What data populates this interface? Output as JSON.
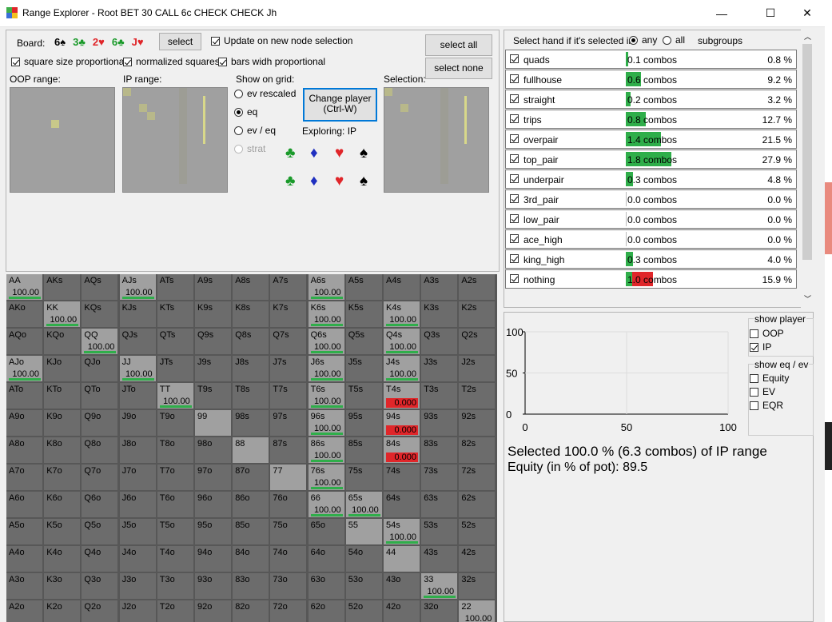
{
  "window": {
    "title": "Range Explorer  - Root BET 30 CALL 6c CHECK CHECK Jh",
    "minimize": "—",
    "maximize": "☐",
    "close": "✕",
    "icon_colors": [
      "#3fae4a",
      "#e0262a",
      "#3b6fd8",
      "#f0c020"
    ]
  },
  "board": {
    "label": "Board:",
    "cards": [
      {
        "text": "6♠",
        "color": "#000000"
      },
      {
        "text": "3♣",
        "color": "#1a9a2a"
      },
      {
        "text": "2♥",
        "color": "#e0262a"
      },
      {
        "text": "6♣",
        "color": "#1a9a2a"
      },
      {
        "text": "J♥",
        "color": "#e0262a"
      }
    ],
    "select_label": "select"
  },
  "options": {
    "update_on_node": "Update on new node selection",
    "square_size": "square size proportional",
    "normalized": "normalized squares",
    "bars_width": "bars widh proportional"
  },
  "labels": {
    "oop_range": "OOP range:",
    "ip_range": "IP range:",
    "show_on_grid": "Show on grid:",
    "selection": "Selection:",
    "exploring": "Exploring: IP"
  },
  "grid_options": [
    "ev rescaled",
    "eq",
    "ev / eq",
    "strat"
  ],
  "change_player": {
    "line1": "Change player",
    "line2": "(Ctrl-W)"
  },
  "select_all": "select all",
  "select_none": "select none",
  "suits": {
    "club": "♣",
    "diamond": "♦",
    "heart": "♥",
    "spade": "♠",
    "colors": {
      "club": "#1a9a2a",
      "diamond": "#2030c0",
      "heart": "#e0262a",
      "spade": "#000000"
    }
  },
  "subgroup_header": {
    "text": "Select hand if it's selected in",
    "any": "any",
    "all": "all",
    "subgroups": "subgroups"
  },
  "subgroups": [
    {
      "name": "quads",
      "combos": "0.1 combos",
      "combos_value": 0.1,
      "pct": "0.8 %",
      "red": 0
    },
    {
      "name": "fullhouse",
      "combos": "0.6 combos",
      "combos_value": 0.6,
      "pct": "9.2 %",
      "red": 0
    },
    {
      "name": "straight",
      "combos": "0.2 combos",
      "combos_value": 0.2,
      "pct": "3.2 %",
      "red": 0
    },
    {
      "name": "trips",
      "combos": "0.8 combos",
      "combos_value": 0.8,
      "pct": "12.7 %",
      "red": 0
    },
    {
      "name": "overpair",
      "combos": "1.4 combos",
      "combos_value": 1.4,
      "pct": "21.5 %",
      "red": 0
    },
    {
      "name": "top_pair",
      "combos": "1.8 combos",
      "combos_value": 1.8,
      "pct": "27.9 %",
      "red": 0
    },
    {
      "name": "underpair",
      "combos": "0.3 combos",
      "combos_value": 0.3,
      "pct": "4.8 %",
      "red": 0
    },
    {
      "name": "3rd_pair",
      "combos": "0.0 combos",
      "combos_value": 0.0,
      "pct": "0.0 %",
      "red": 0
    },
    {
      "name": "low_pair",
      "combos": "0.0 combos",
      "combos_value": 0.0,
      "pct": "0.0 %",
      "red": 0
    },
    {
      "name": "ace_high",
      "combos": "0.0 combos",
      "combos_value": 0.0,
      "pct": "0.0 %",
      "red": 0
    },
    {
      "name": "king_high",
      "combos": "0.3 combos",
      "combos_value": 0.3,
      "pct": "4.0 %",
      "red": 0
    },
    {
      "name": "nothing",
      "combos": "1.0 combos",
      "combos_value": 1.0,
      "pct": "15.9 %",
      "red": 1
    }
  ],
  "chart_data": {
    "type": "line",
    "x_ticks": [
      "0",
      "50",
      "100"
    ],
    "y_ticks": [
      "100",
      "50",
      "0"
    ],
    "xlim": [
      0,
      100
    ],
    "ylim": [
      0,
      100
    ],
    "series": []
  },
  "show_player": {
    "title": "show player",
    "oop": "OOP",
    "ip": "IP"
  },
  "show_eq": {
    "title": "show eq / ev",
    "equity": "Equity",
    "ev": "EV",
    "eqr": "EQR"
  },
  "summary": {
    "line1": "Selected 100.0 % (6.3 combos) of IP range",
    "line2": " Equity (in % of pot): 89.5"
  },
  "grid_ranks": [
    "A",
    "K",
    "Q",
    "J",
    "T",
    "9",
    "8",
    "7",
    "6",
    "5",
    "4",
    "3",
    "2"
  ],
  "grid_values": {
    "AA": "100.00",
    "AJs": "100.00",
    "A6s": "100.00",
    "KK": "100.00",
    "K6s": "100.00",
    "K4s": "100.00",
    "QQ": "100.00",
    "Q6s": "100.00",
    "Q4s": "100.00",
    "AJo": "100.00",
    "JJ": "100.00",
    "J6s": "100.00",
    "J4s": "100.00",
    "TT": "100.00",
    "T6s": "100.00",
    "T4s": "0.000",
    "96s": "100.00",
    "94s": "0.000",
    "86s": "100.00",
    "84s": "0.000",
    "76s": "100.00",
    "66": "100.00",
    "65s": "100.00",
    "54s": "100.00",
    "33": "100.00",
    "22": "100.00"
  },
  "grid_selected": [
    "AA",
    "AJs",
    "A6s",
    "KK",
    "K6s",
    "K4s",
    "QQ",
    "Q6s",
    "Q4s",
    "AJo",
    "JJ",
    "J6s",
    "J4s",
    "TT",
    "T6s",
    "T4s",
    "99",
    "96s",
    "94s",
    "88",
    "86s",
    "84s",
    "77",
    "76s",
    "66",
    "65s",
    "55",
    "54s",
    "44",
    "33",
    "22"
  ]
}
